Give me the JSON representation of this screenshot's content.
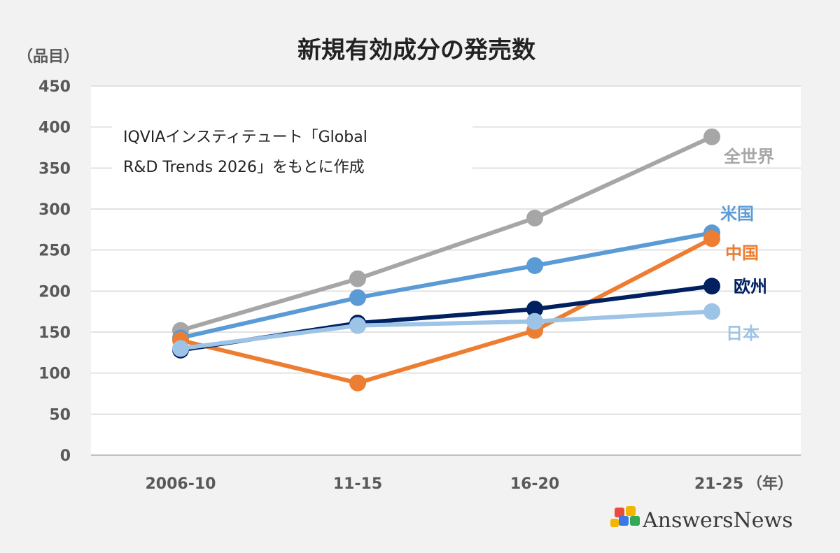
{
  "chart_data": {
    "type": "line",
    "title": "新規有効成分の発売数",
    "ylabel": "（品目）",
    "xlabel": "（年）",
    "ylim": [
      0,
      450
    ],
    "yticks": [
      0,
      50,
      100,
      150,
      200,
      250,
      300,
      350,
      400,
      450
    ],
    "grid": true,
    "categories": [
      "2006-10",
      "11-15",
      "16-20",
      "21-25"
    ],
    "series": [
      {
        "name": "全世界",
        "color": "#a6a6a6",
        "values": [
          152,
          215,
          289,
          388
        ]
      },
      {
        "name": "米国",
        "color": "#5b9bd5",
        "values": [
          143,
          192,
          231,
          271
        ]
      },
      {
        "name": "中国",
        "color": "#ed7d31",
        "values": [
          140,
          88,
          152,
          264
        ]
      },
      {
        "name": "欧州",
        "color": "#002060",
        "values": [
          128,
          161,
          178,
          206
        ]
      },
      {
        "name": "日本",
        "color": "#9dc3e6",
        "values": [
          130,
          158,
          163,
          175
        ]
      }
    ],
    "annotation": [
      "IQVIAインスティテュート「Global",
      "R&D Trends 2026」をもとに作成"
    ]
  },
  "brand": {
    "name": "AnswersNews"
  }
}
